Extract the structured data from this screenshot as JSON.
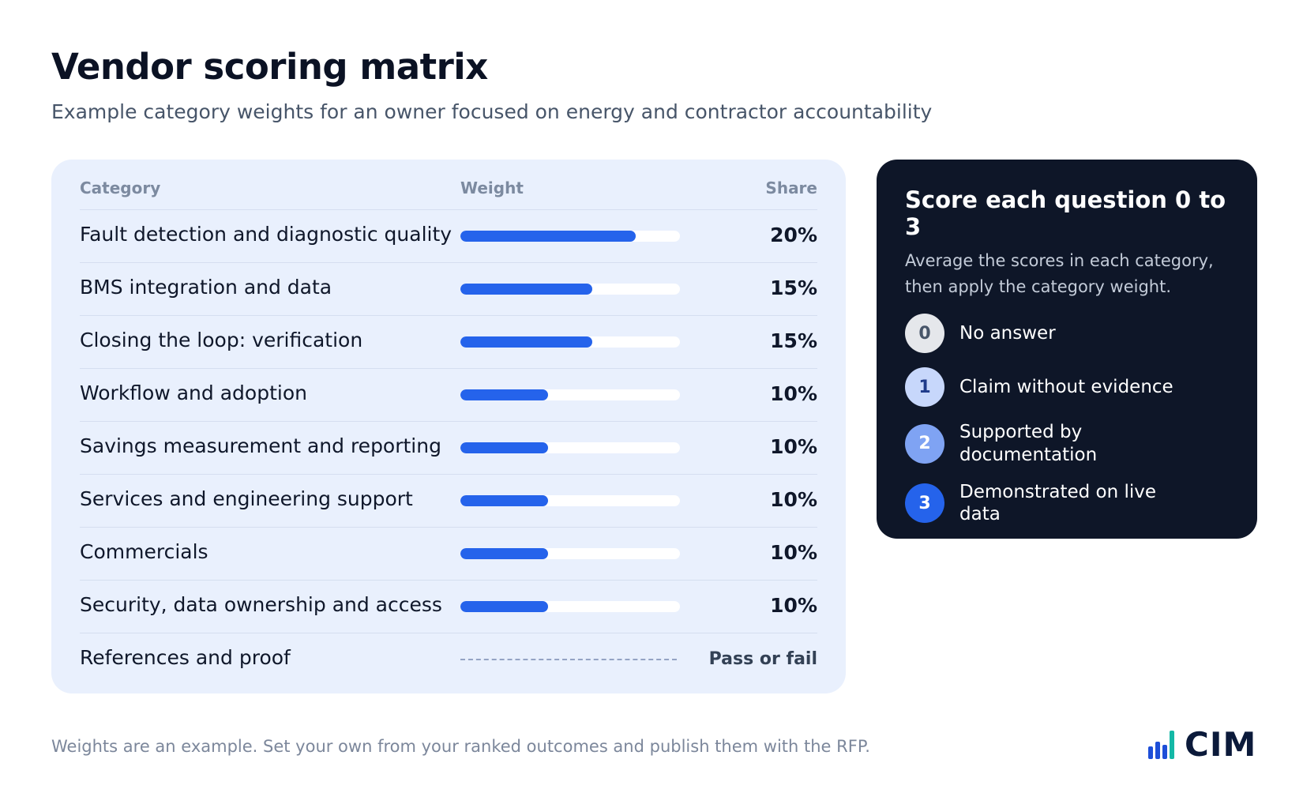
{
  "header": {
    "title": "Vendor scoring matrix",
    "subtitle": "Example category weights for an owner focused on energy and contractor accountability"
  },
  "matrix": {
    "columns": {
      "category": "Category",
      "weight": "Weight",
      "share": "Share"
    },
    "rows": [
      {
        "category": "Fault detection and diagnostic quality",
        "weight": 20,
        "share": "20%"
      },
      {
        "category": "BMS integration and data",
        "weight": 15,
        "share": "15%"
      },
      {
        "category": "Closing the loop: verification",
        "weight": 15,
        "share": "15%"
      },
      {
        "category": "Workflow and adoption",
        "weight": 10,
        "share": "10%"
      },
      {
        "category": "Savings measurement and reporting",
        "weight": 10,
        "share": "10%"
      },
      {
        "category": "Services and engineering support",
        "weight": 10,
        "share": "10%"
      },
      {
        "category": "Commercials",
        "weight": 10,
        "share": "10%"
      },
      {
        "category": "Security, data ownership and access",
        "weight": 10,
        "share": "10%"
      },
      {
        "category": "References and proof",
        "weight": null,
        "share": "Pass or fail"
      }
    ],
    "bar_max": 25,
    "bar_color": "#2563eb"
  },
  "scoring": {
    "title": "Score each question 0 to 3",
    "description": "Average the scores in each category, then apply the category weight.",
    "levels": [
      {
        "score": "0",
        "label": "No answer",
        "badge_bg": "#e5e7eb",
        "badge_fg": "#475569"
      },
      {
        "score": "1",
        "label": "Claim without evidence",
        "badge_bg": "#c7d7fb",
        "badge_fg": "#1e3a8a"
      },
      {
        "score": "2",
        "label": "Supported by documentation",
        "badge_bg": "#7fa3f3",
        "badge_fg": "#ffffff"
      },
      {
        "score": "3",
        "label": "Demonstrated on live data",
        "badge_bg": "#2563eb",
        "badge_fg": "#ffffff"
      }
    ]
  },
  "footer": {
    "note": "Weights are an example. Set your own from your ranked outcomes and publish them with the RFP."
  },
  "brand": {
    "logo_text": "CIM",
    "logo_icon": "bar-chart-icon",
    "colors": {
      "primary": "#1d4ed8",
      "accent": "#14b8a6",
      "text": "#0b1a3a"
    }
  }
}
